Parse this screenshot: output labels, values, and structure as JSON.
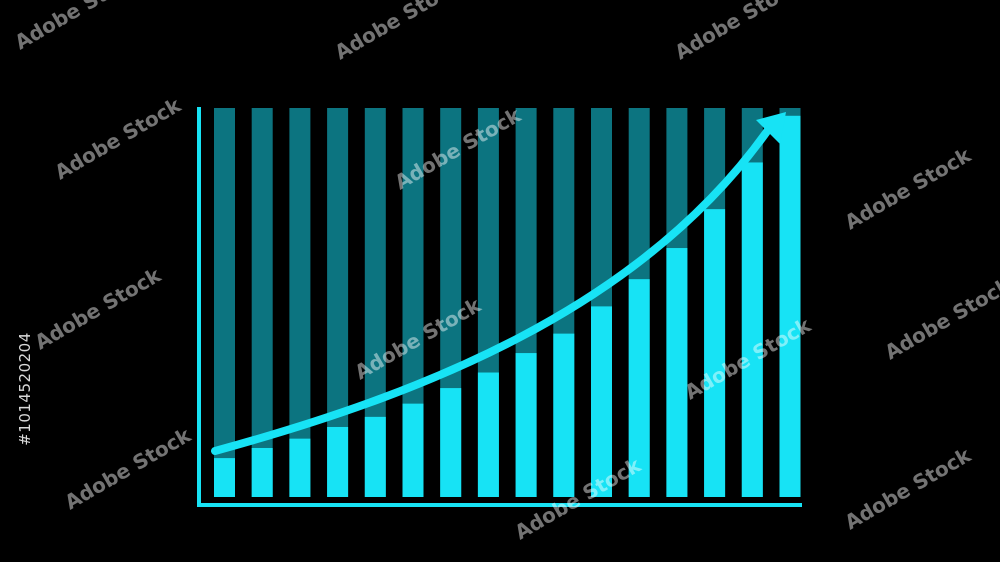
{
  "chart_data": {
    "type": "bar",
    "title": "",
    "xlabel": "",
    "ylabel": "",
    "ylim": [
      0,
      100
    ],
    "grid": false,
    "bar_count": 16,
    "values": [
      10,
      12.6,
      15,
      18,
      20.6,
      24,
      28,
      32,
      37,
      42,
      49,
      56,
      64,
      74,
      86,
      98
    ],
    "background_bar_value": 100,
    "trend_arrow": "rising exponential curve arrow over bars",
    "colors": {
      "background": "#000000",
      "bar": "#17e3f5",
      "bar_background": "#0c7480",
      "axis": "#17e3f5",
      "arrow": "#17e3f5"
    }
  },
  "watermark": {
    "text": "Adobe Stock",
    "id": "#1014520204"
  }
}
